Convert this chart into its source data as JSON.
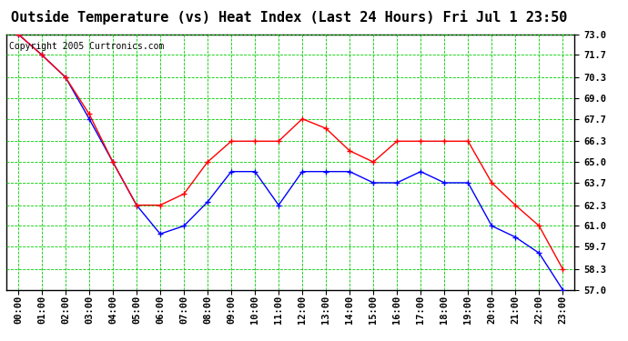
{
  "title": "Outside Temperature (vs) Heat Index (Last 24 Hours) Fri Jul 1 23:50",
  "copyright": "Copyright 2005 Curtronics.com",
  "background_color": "#ffffff",
  "plot_bg_color": "#ffffff",
  "grid_color": "#00cc00",
  "hours": [
    "00:00",
    "01:00",
    "02:00",
    "03:00",
    "04:00",
    "05:00",
    "06:00",
    "07:00",
    "08:00",
    "09:00",
    "10:00",
    "11:00",
    "12:00",
    "13:00",
    "14:00",
    "15:00",
    "16:00",
    "17:00",
    "18:00",
    "19:00",
    "20:00",
    "21:00",
    "22:00",
    "23:00"
  ],
  "blue_data": [
    73.0,
    71.7,
    70.3,
    67.7,
    65.0,
    62.3,
    60.5,
    61.0,
    62.5,
    64.4,
    64.4,
    62.3,
    64.4,
    64.4,
    64.4,
    63.7,
    63.7,
    64.4,
    63.7,
    63.7,
    61.0,
    60.3,
    59.3,
    57.0
  ],
  "red_data": [
    73.0,
    71.7,
    70.3,
    68.0,
    65.0,
    62.3,
    62.3,
    63.0,
    65.0,
    66.3,
    66.3,
    66.3,
    67.7,
    67.1,
    65.7,
    65.0,
    66.3,
    66.3,
    66.3,
    66.3,
    63.7,
    62.3,
    61.0,
    58.3
  ],
  "blue_color": "#0000ff",
  "red_color": "#ff0000",
  "ylim_min": 57.0,
  "ylim_max": 73.0,
  "yticks": [
    57.0,
    58.3,
    59.7,
    61.0,
    62.3,
    63.7,
    65.0,
    66.3,
    67.7,
    69.0,
    70.3,
    71.7,
    73.0
  ],
  "title_fontsize": 11,
  "copyright_fontsize": 7,
  "tick_fontsize": 7.5
}
